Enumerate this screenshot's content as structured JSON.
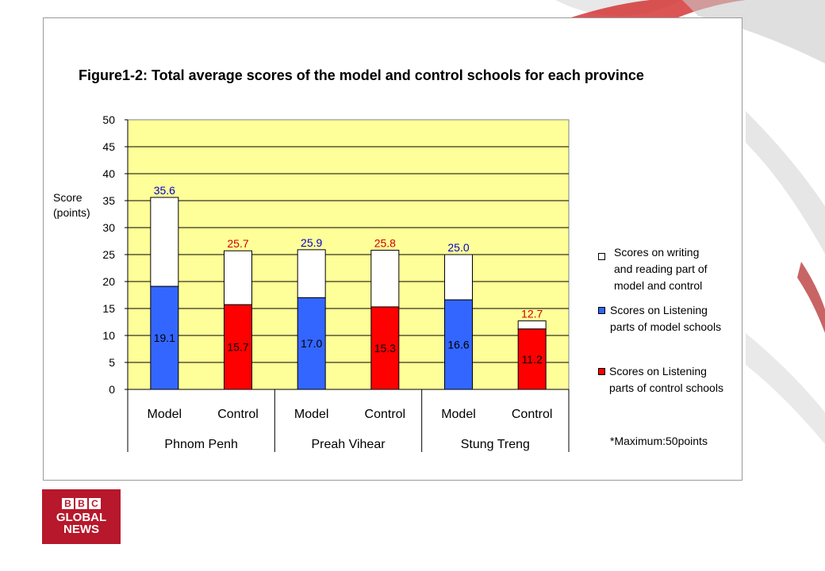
{
  "chart_data": {
    "type": "bar",
    "stacked": true,
    "title": "Figure1-2: Total average scores of the model and control schools for each province",
    "ylabel": "Score (points)",
    "ylabel_lines": [
      "Score",
      "(points)"
    ],
    "ylim": [
      0,
      50
    ],
    "yticks": [
      "0",
      "5",
      "10",
      "15",
      "20",
      "25",
      "30",
      "35",
      "40",
      "45",
      "50"
    ],
    "grid": true,
    "plot_background": "#ffff99",
    "groups": [
      "Phnom Penh",
      "Preah Vihear",
      "Stung Treng"
    ],
    "categories": [
      "Model",
      "Control",
      "Model",
      "Control",
      "Model",
      "Control"
    ],
    "bars": [
      {
        "group": "Phnom Penh",
        "category": "Model",
        "kind": "model",
        "listening": 19.1,
        "total": 35.6,
        "listening_label": "19.1",
        "total_label": "35.6"
      },
      {
        "group": "Phnom Penh",
        "category": "Control",
        "kind": "control",
        "listening": 15.7,
        "total": 25.7,
        "listening_label": "15.7",
        "total_label": "25.7"
      },
      {
        "group": "Preah Vihear",
        "category": "Model",
        "kind": "model",
        "listening": 17.0,
        "total": 25.9,
        "listening_label": "17.0",
        "total_label": "25.9"
      },
      {
        "group": "Preah Vihear",
        "category": "Control",
        "kind": "control",
        "listening": 15.3,
        "total": 25.8,
        "listening_label": "15.3",
        "total_label": "25.8"
      },
      {
        "group": "Stung Treng",
        "category": "Model",
        "kind": "model",
        "listening": 16.6,
        "total": 25.0,
        "listening_label": "16.6",
        "total_label": "25.0"
      },
      {
        "group": "Stung Treng",
        "category": "Control",
        "kind": "control",
        "listening": 11.2,
        "total": 12.7,
        "listening_label": "11.2",
        "total_label": "12.7"
      }
    ],
    "colors": {
      "model": "#3366ff",
      "control": "#ff0000",
      "writing_reading": "#ffffff",
      "model_label": "#0000cc",
      "control_label": "#cc0000"
    },
    "legend_position": "right",
    "legend": [
      {
        "lines": [
          "Scores on writing",
          "and reading part of",
          "model and control"
        ],
        "color": "#ffffff"
      },
      {
        "lines": [
          "Scores on Listening",
          "parts of model schools"
        ],
        "color": "#3366ff"
      },
      {
        "lines": [
          "Scores on Listening",
          "parts of control schools"
        ],
        "color": "#ff0000"
      }
    ],
    "note": "*Maximum:50points"
  },
  "branding": {
    "logo_blocks": [
      "B",
      "B",
      "C"
    ],
    "logo_line1": "GLOBAL",
    "logo_line2": "NEWS"
  }
}
